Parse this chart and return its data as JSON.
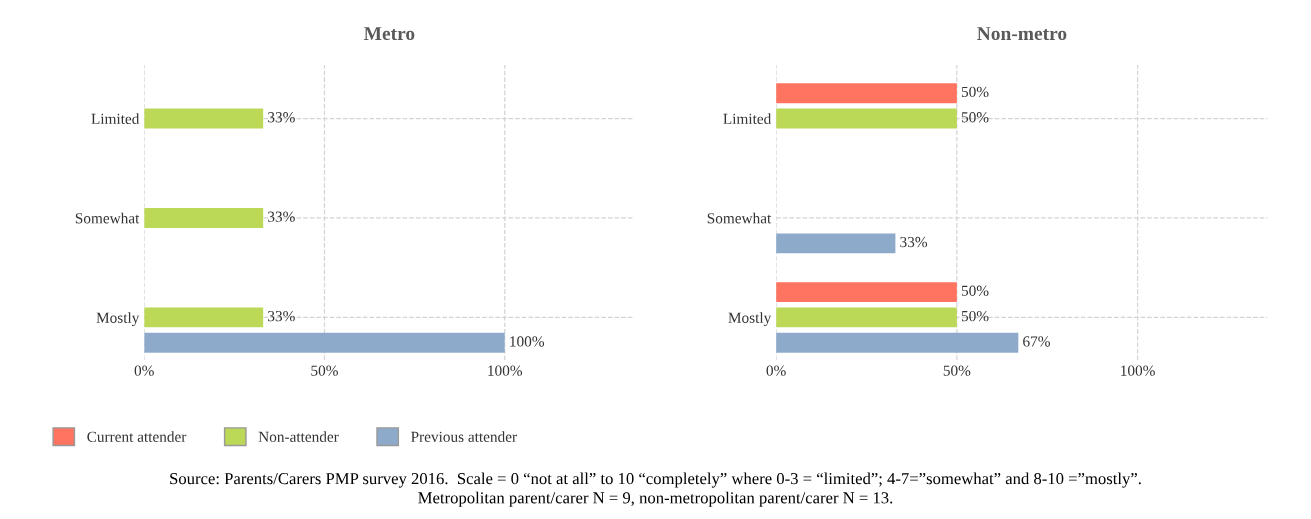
{
  "chart_data": [
    {
      "type": "bar",
      "orientation": "horizontal",
      "title": "Metro",
      "categories": [
        "Limited",
        "Somewhat",
        "Mostly"
      ],
      "series": [
        {
          "name": "Current attender",
          "color": "#fe7461",
          "values": [
            null,
            null,
            null
          ],
          "value_labels": [
            null,
            null,
            null
          ]
        },
        {
          "name": "Non-attender",
          "color": "#bcd857",
          "values": [
            33,
            33,
            33
          ],
          "value_labels": [
            "33%",
            "33%",
            "33%"
          ]
        },
        {
          "name": "Previous attender",
          "color": "#8eaacb",
          "values": [
            null,
            null,
            100
          ],
          "value_labels": [
            null,
            null,
            "100%"
          ]
        }
      ],
      "xlim": [
        0,
        136
      ],
      "xticks": [
        {
          "value": 0,
          "label": "0%"
        },
        {
          "value": 50,
          "label": "50%"
        },
        {
          "value": 100,
          "label": "100%"
        }
      ],
      "grid": true,
      "legend": "bottom",
      "annotations": [
        "Source: Parents/Carers PMP survey 2016.  Scale = 0 “not at all” to 10 “completely” where 0-3 = “limited”; 4-7=”somewhat” and 8-10 =”mostly”.",
        "Metropolitan parent/carer N = 9, non-metropolitan parent/carer N = 13."
      ]
    },
    {
      "type": "bar",
      "orientation": "horizontal",
      "title": "Non-metro",
      "categories": [
        "Limited",
        "Somewhat",
        "Mostly"
      ],
      "series": [
        {
          "color": "#fe7461",
          "values": [
            50,
            null,
            50
          ],
          "value_labels": [
            "50%",
            null,
            "50%"
          ]
        },
        {
          "color": "#bcd857",
          "values": [
            50,
            null,
            50
          ],
          "value_labels": [
            "50%",
            null,
            "50%"
          ]
        },
        {
          "color": "#8eaacb",
          "values": [
            null,
            33,
            67
          ],
          "value_labels": [
            null,
            "33%",
            "67%"
          ]
        }
      ],
      "xlim": [
        0,
        136
      ],
      "xticks": [
        {
          "value": 0,
          "label": "0%"
        },
        {
          "value": 50,
          "label": "50%"
        },
        {
          "value": 100,
          "label": "100%"
        }
      ],
      "grid": true
    }
  ]
}
